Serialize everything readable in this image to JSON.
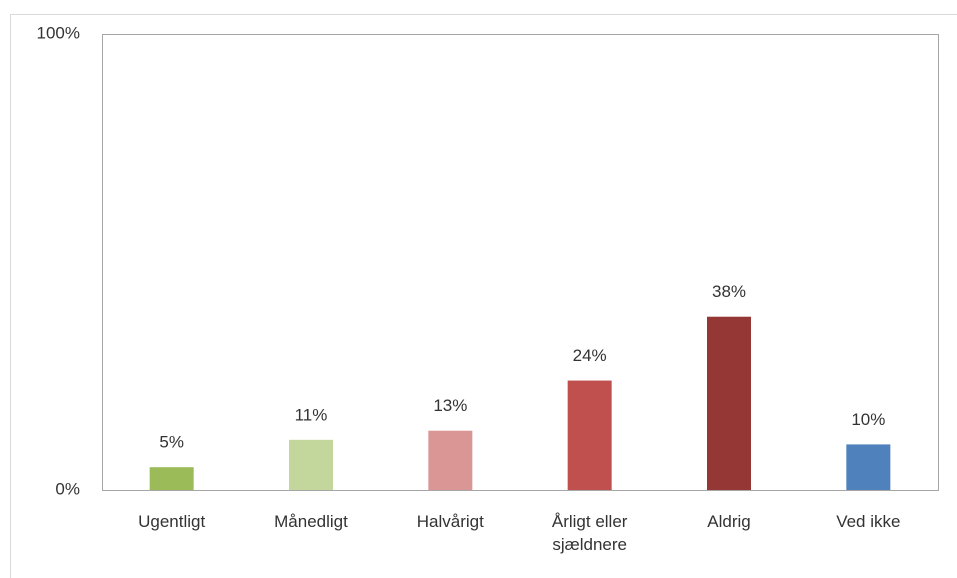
{
  "chart_data": {
    "type": "bar",
    "categories": [
      "Ugentligt",
      "Månedligt",
      "Halvårigt",
      "Årligt eller sjældnere",
      "Aldrig",
      "Ved ikke"
    ],
    "values": [
      5,
      11,
      13,
      24,
      38,
      10
    ],
    "value_labels": [
      "5%",
      "11%",
      "13%",
      "24%",
      "38%",
      "10%"
    ],
    "colors": [
      "#9bbb59",
      "#c3d69b",
      "#d99694",
      "#c0504d",
      "#953735",
      "#4f81bd"
    ],
    "ylim": [
      0,
      100
    ],
    "yticks": [
      {
        "value": 0,
        "label": "0%"
      },
      {
        "value": 100,
        "label": "100%"
      }
    ],
    "grid": false
  }
}
